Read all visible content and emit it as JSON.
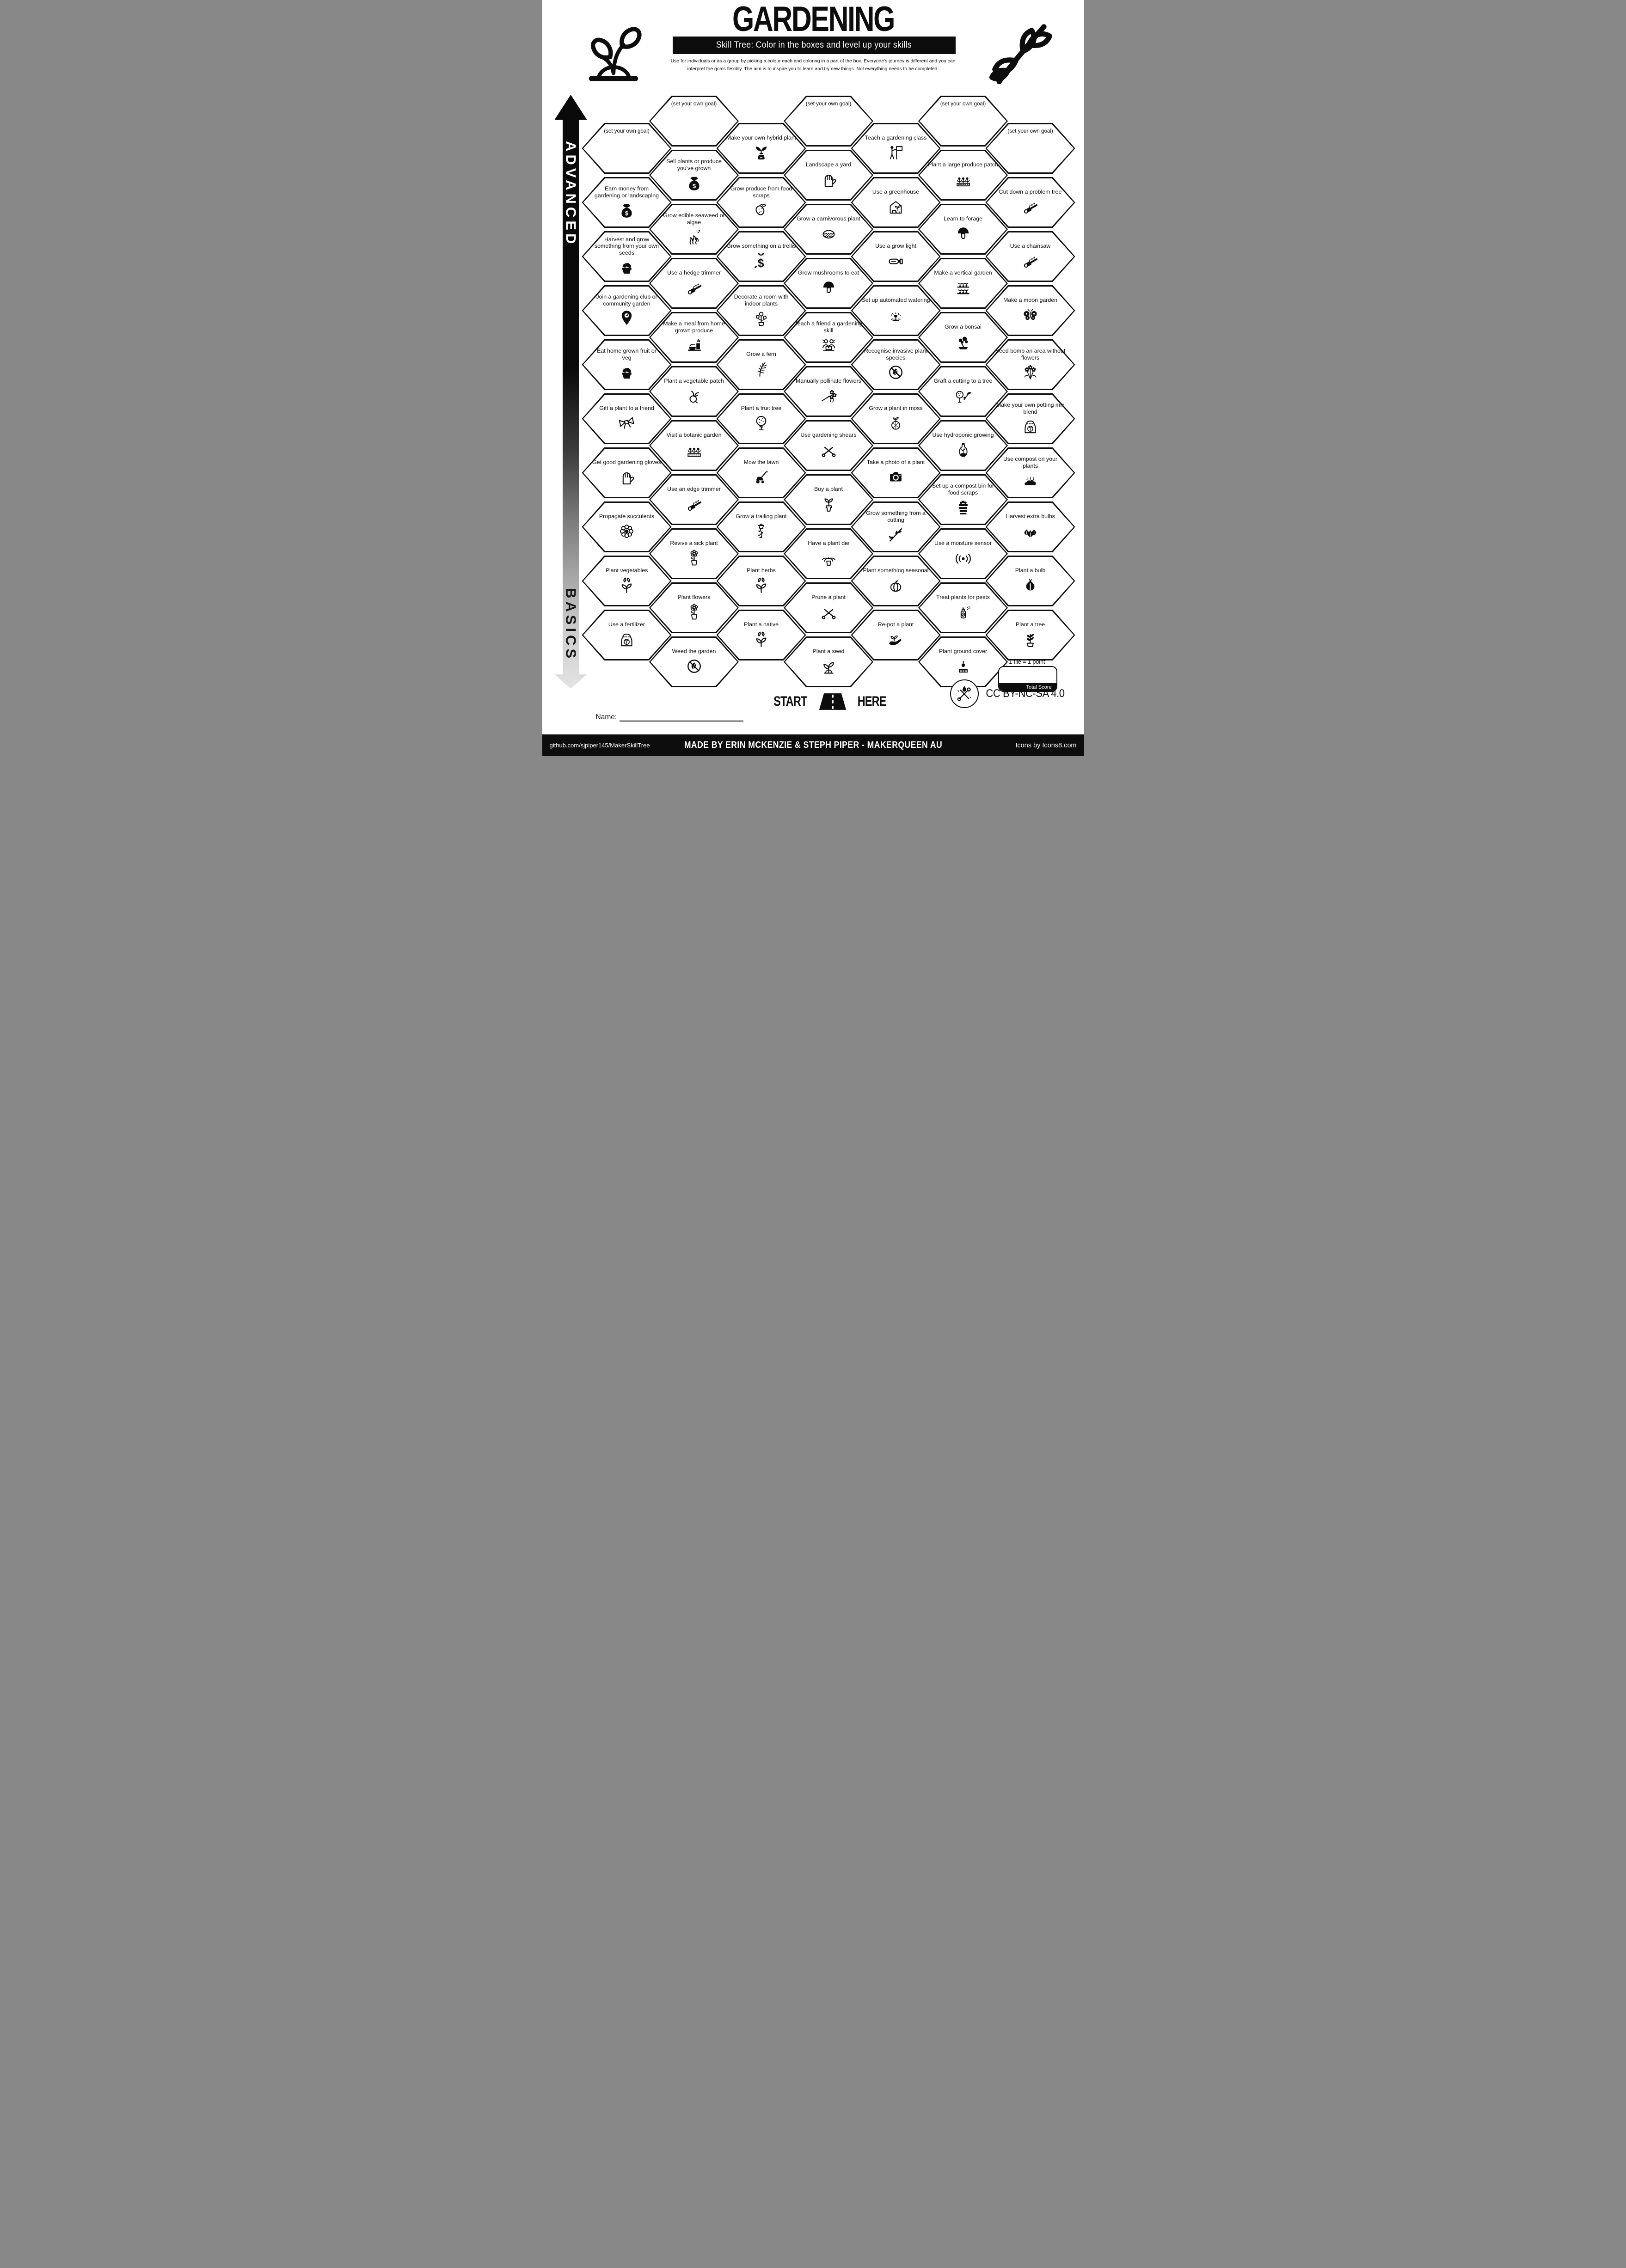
{
  "title": "GARDENING",
  "subtitle": "Skill Tree:  Color in the boxes and level up your skills",
  "description_line1": "Use for individuals or as a group by picking a colour each and coloring in a part of the box.  Everyone's journey is different and you can",
  "description_line2": "interpret the goals flexibly.  The aim is to inspire you to learn and try new things. Not everything needs to be completed.",
  "axis": {
    "top": "ADVANCED",
    "bottom": "BASICS"
  },
  "start": {
    "start": "START",
    "here": "HERE"
  },
  "name_label": "Name:",
  "scoring": {
    "note": "1 tile = 1 point",
    "total": "Total Score"
  },
  "license": "CC BY-NC-SA 4.0",
  "footer": {
    "left": "github.com/sjpiper145/MakerSkillTree",
    "center": "MADE BY ERIN MCKENZIE & STEPH PIPER  -  MAKERQUEEN AU",
    "right": "Icons by Icons8.com"
  },
  "colors": {
    "ink": "#0d0d0d",
    "paper": "#ffffff"
  },
  "hexes": [
    {
      "c": 0,
      "r": 0,
      "label": "(set your own goal)",
      "goal": true
    },
    {
      "c": 0,
      "r": 1,
      "label": "Earn money from gardening or landscaping",
      "icon": "money-bag"
    },
    {
      "c": 0,
      "r": 2,
      "label": "Harvest and grow something from your own seeds",
      "icon": "produce-basket"
    },
    {
      "c": 0,
      "r": 3,
      "label": "Join a gardening club or community garden",
      "icon": "location-pin"
    },
    {
      "c": 0,
      "r": 4,
      "label": "Eat home grown fruit or veg",
      "icon": "produce-basket"
    },
    {
      "c": 0,
      "r": 5,
      "label": "Gift a plant to a friend",
      "icon": "gift-bow"
    },
    {
      "c": 0,
      "r": 6,
      "label": "Get good gardening gloves",
      "icon": "gardening-gloves"
    },
    {
      "c": 0,
      "r": 7,
      "label": "Propagate succulents",
      "icon": "succulent"
    },
    {
      "c": 0,
      "r": 8,
      "label": "Plant vegetables",
      "icon": "seedling"
    },
    {
      "c": 0,
      "r": 9,
      "label": "Use a fertilizer",
      "icon": "fertilizer-bag"
    },
    {
      "c": 1,
      "r": 0,
      "label": "(set your own goal)",
      "goal": true
    },
    {
      "c": 1,
      "r": 1,
      "label": "Sell plants or produce you've grown",
      "icon": "money-bag"
    },
    {
      "c": 1,
      "r": 2,
      "label": "Grow edible seaweed or algae",
      "icon": "seaweed"
    },
    {
      "c": 1,
      "r": 3,
      "label": "Use a hedge trimmer",
      "icon": "hedge-trimmer"
    },
    {
      "c": 1,
      "r": 4,
      "label": "Make a meal from home grown produce",
      "icon": "meal"
    },
    {
      "c": 1,
      "r": 5,
      "label": "Plant a vegetable patch",
      "icon": "radish"
    },
    {
      "c": 1,
      "r": 6,
      "label": "Visit a botanic garden",
      "icon": "flower-bed"
    },
    {
      "c": 1,
      "r": 7,
      "label": "Use an edge trimmer",
      "icon": "edge-trimmer"
    },
    {
      "c": 1,
      "r": 8,
      "label": "Revive a sick plant",
      "icon": "revive-plant"
    },
    {
      "c": 1,
      "r": 9,
      "label": "Plant flowers",
      "icon": "potted-flower"
    },
    {
      "c": 1,
      "r": 10,
      "label": "Weed the garden",
      "icon": "no-weed"
    },
    {
      "c": 2,
      "r": 0,
      "label": "Make your own hybrid plant",
      "icon": "hybrid-plant"
    },
    {
      "c": 2,
      "r": 1,
      "label": "Grow produce from food scraps",
      "icon": "food-scraps"
    },
    {
      "c": 2,
      "r": 2,
      "label": "Grow something on a trellis",
      "icon": "trellis-plant"
    },
    {
      "c": 2,
      "r": 3,
      "label": "Decorate a room with indoor plants",
      "icon": "indoor-plant"
    },
    {
      "c": 2,
      "r": 4,
      "label": "Grow a fern",
      "icon": "fern"
    },
    {
      "c": 2,
      "r": 5,
      "label": "Plant a fruit tree",
      "icon": "fruit-tree"
    },
    {
      "c": 2,
      "r": 6,
      "label": "Mow the lawn",
      "icon": "lawn-mower"
    },
    {
      "c": 2,
      "r": 7,
      "label": "Grow a trailing plant",
      "icon": "trailing-plant"
    },
    {
      "c": 2,
      "r": 8,
      "label": "Plant herbs",
      "icon": "seedling"
    },
    {
      "c": 2,
      "r": 9,
      "label": "Plant a native",
      "icon": "seedling"
    },
    {
      "c": 3,
      "r": 0,
      "label": "(set your own goal)",
      "goal": true
    },
    {
      "c": 3,
      "r": 1,
      "label": "Landscape a yard",
      "icon": "glove-flower"
    },
    {
      "c": 3,
      "r": 2,
      "label": "Grow a carnivorous plant",
      "icon": "venus-flytrap"
    },
    {
      "c": 3,
      "r": 3,
      "label": "Grow mushrooms to eat",
      "icon": "mushroom"
    },
    {
      "c": 3,
      "r": 4,
      "label": "Teach a friend a gardening skill",
      "icon": "two-people"
    },
    {
      "c": 3,
      "r": 5,
      "label": "Manually pollinate flowers",
      "icon": "pollination-swab"
    },
    {
      "c": 3,
      "r": 6,
      "label": "Use gardening shears",
      "icon": "shears"
    },
    {
      "c": 3,
      "r": 7,
      "label": "Buy a plant",
      "icon": "potted-plant"
    },
    {
      "c": 3,
      "r": 8,
      "label": "Have a plant die",
      "icon": "dead-plant"
    },
    {
      "c": 3,
      "r": 9,
      "label": "Prune a plant",
      "icon": "pruning-shears"
    },
    {
      "c": 3,
      "r": 10,
      "label": "Plant a seed",
      "icon": "sprout"
    },
    {
      "c": 4,
      "r": 0,
      "label": "Teach a gardening class",
      "icon": "presenter"
    },
    {
      "c": 4,
      "r": 1,
      "label": "Use a greenhouse",
      "icon": "greenhouse"
    },
    {
      "c": 4,
      "r": 2,
      "label": "Use a grow light",
      "icon": "grow-light"
    },
    {
      "c": 4,
      "r": 3,
      "label": "Set up automated watering",
      "icon": "sprinkler"
    },
    {
      "c": 4,
      "r": 4,
      "label": "Recognise invasive plant species",
      "icon": "no-weed"
    },
    {
      "c": 4,
      "r": 5,
      "label": "Grow a plant in moss",
      "icon": "moss-ball"
    },
    {
      "c": 4,
      "r": 6,
      "label": "Take a photo of a plant",
      "icon": "camera"
    },
    {
      "c": 4,
      "r": 7,
      "label": "Grow something from a cutting",
      "icon": "leaf-branch"
    },
    {
      "c": 4,
      "r": 8,
      "label": "Plant something seasonal",
      "icon": "pumpkin"
    },
    {
      "c": 4,
      "r": 9,
      "label": "Re-pot a plant",
      "icon": "hand-plant"
    },
    {
      "c": 5,
      "r": 0,
      "label": "(set your own goal)",
      "goal": true
    },
    {
      "c": 5,
      "r": 1,
      "label": "Plant a large produce patch",
      "icon": "flower-bed"
    },
    {
      "c": 5,
      "r": 2,
      "label": "Learn to forage",
      "icon": "mushroom"
    },
    {
      "c": 5,
      "r": 3,
      "label": "Make a vertical garden",
      "icon": "plant-shelves"
    },
    {
      "c": 5,
      "r": 4,
      "label": "Grow a bonsai",
      "icon": "bonsai"
    },
    {
      "c": 5,
      "r": 5,
      "label": "Graft a cutting to a tree",
      "icon": "graft"
    },
    {
      "c": 5,
      "r": 6,
      "label": "Use hydroponic growing",
      "icon": "hydroponic-bottle"
    },
    {
      "c": 5,
      "r": 7,
      "label": "Set up a compost bin for food scraps",
      "icon": "compost-bin"
    },
    {
      "c": 5,
      "r": 8,
      "label": "Use a moisture sensor",
      "icon": "moisture-sensor"
    },
    {
      "c": 5,
      "r": 9,
      "label": "Treat plants for pests",
      "icon": "spray-bottle"
    },
    {
      "c": 5,
      "r": 10,
      "label": "Plant ground cover",
      "icon": "ground-cover"
    },
    {
      "c": 6,
      "r": 0,
      "label": "(set your own goal)",
      "goal": true
    },
    {
      "c": 6,
      "r": 1,
      "label": "Cut down a problem tree",
      "icon": "chainsaw"
    },
    {
      "c": 6,
      "r": 2,
      "label": "Use a chainsaw",
      "icon": "chainsaw"
    },
    {
      "c": 6,
      "r": 3,
      "label": "Make a moon garden",
      "icon": "moth"
    },
    {
      "c": 6,
      "r": 4,
      "label": "Seed bomb an area without flowers",
      "icon": "flower-bouquet"
    },
    {
      "c": 6,
      "r": 5,
      "label": "Make your own potting mix blend",
      "icon": "fertilizer-bag"
    },
    {
      "c": 6,
      "r": 6,
      "label": "Use compost on your plants",
      "icon": "compost-pile"
    },
    {
      "c": 6,
      "r": 7,
      "label": "Harvest extra bulbs",
      "icon": "garlic-bulbs"
    },
    {
      "c": 6,
      "r": 8,
      "label": "Plant a bulb",
      "icon": "garlic-bulb"
    },
    {
      "c": 6,
      "r": 9,
      "label": "Plant a tree",
      "icon": "sapling"
    }
  ]
}
